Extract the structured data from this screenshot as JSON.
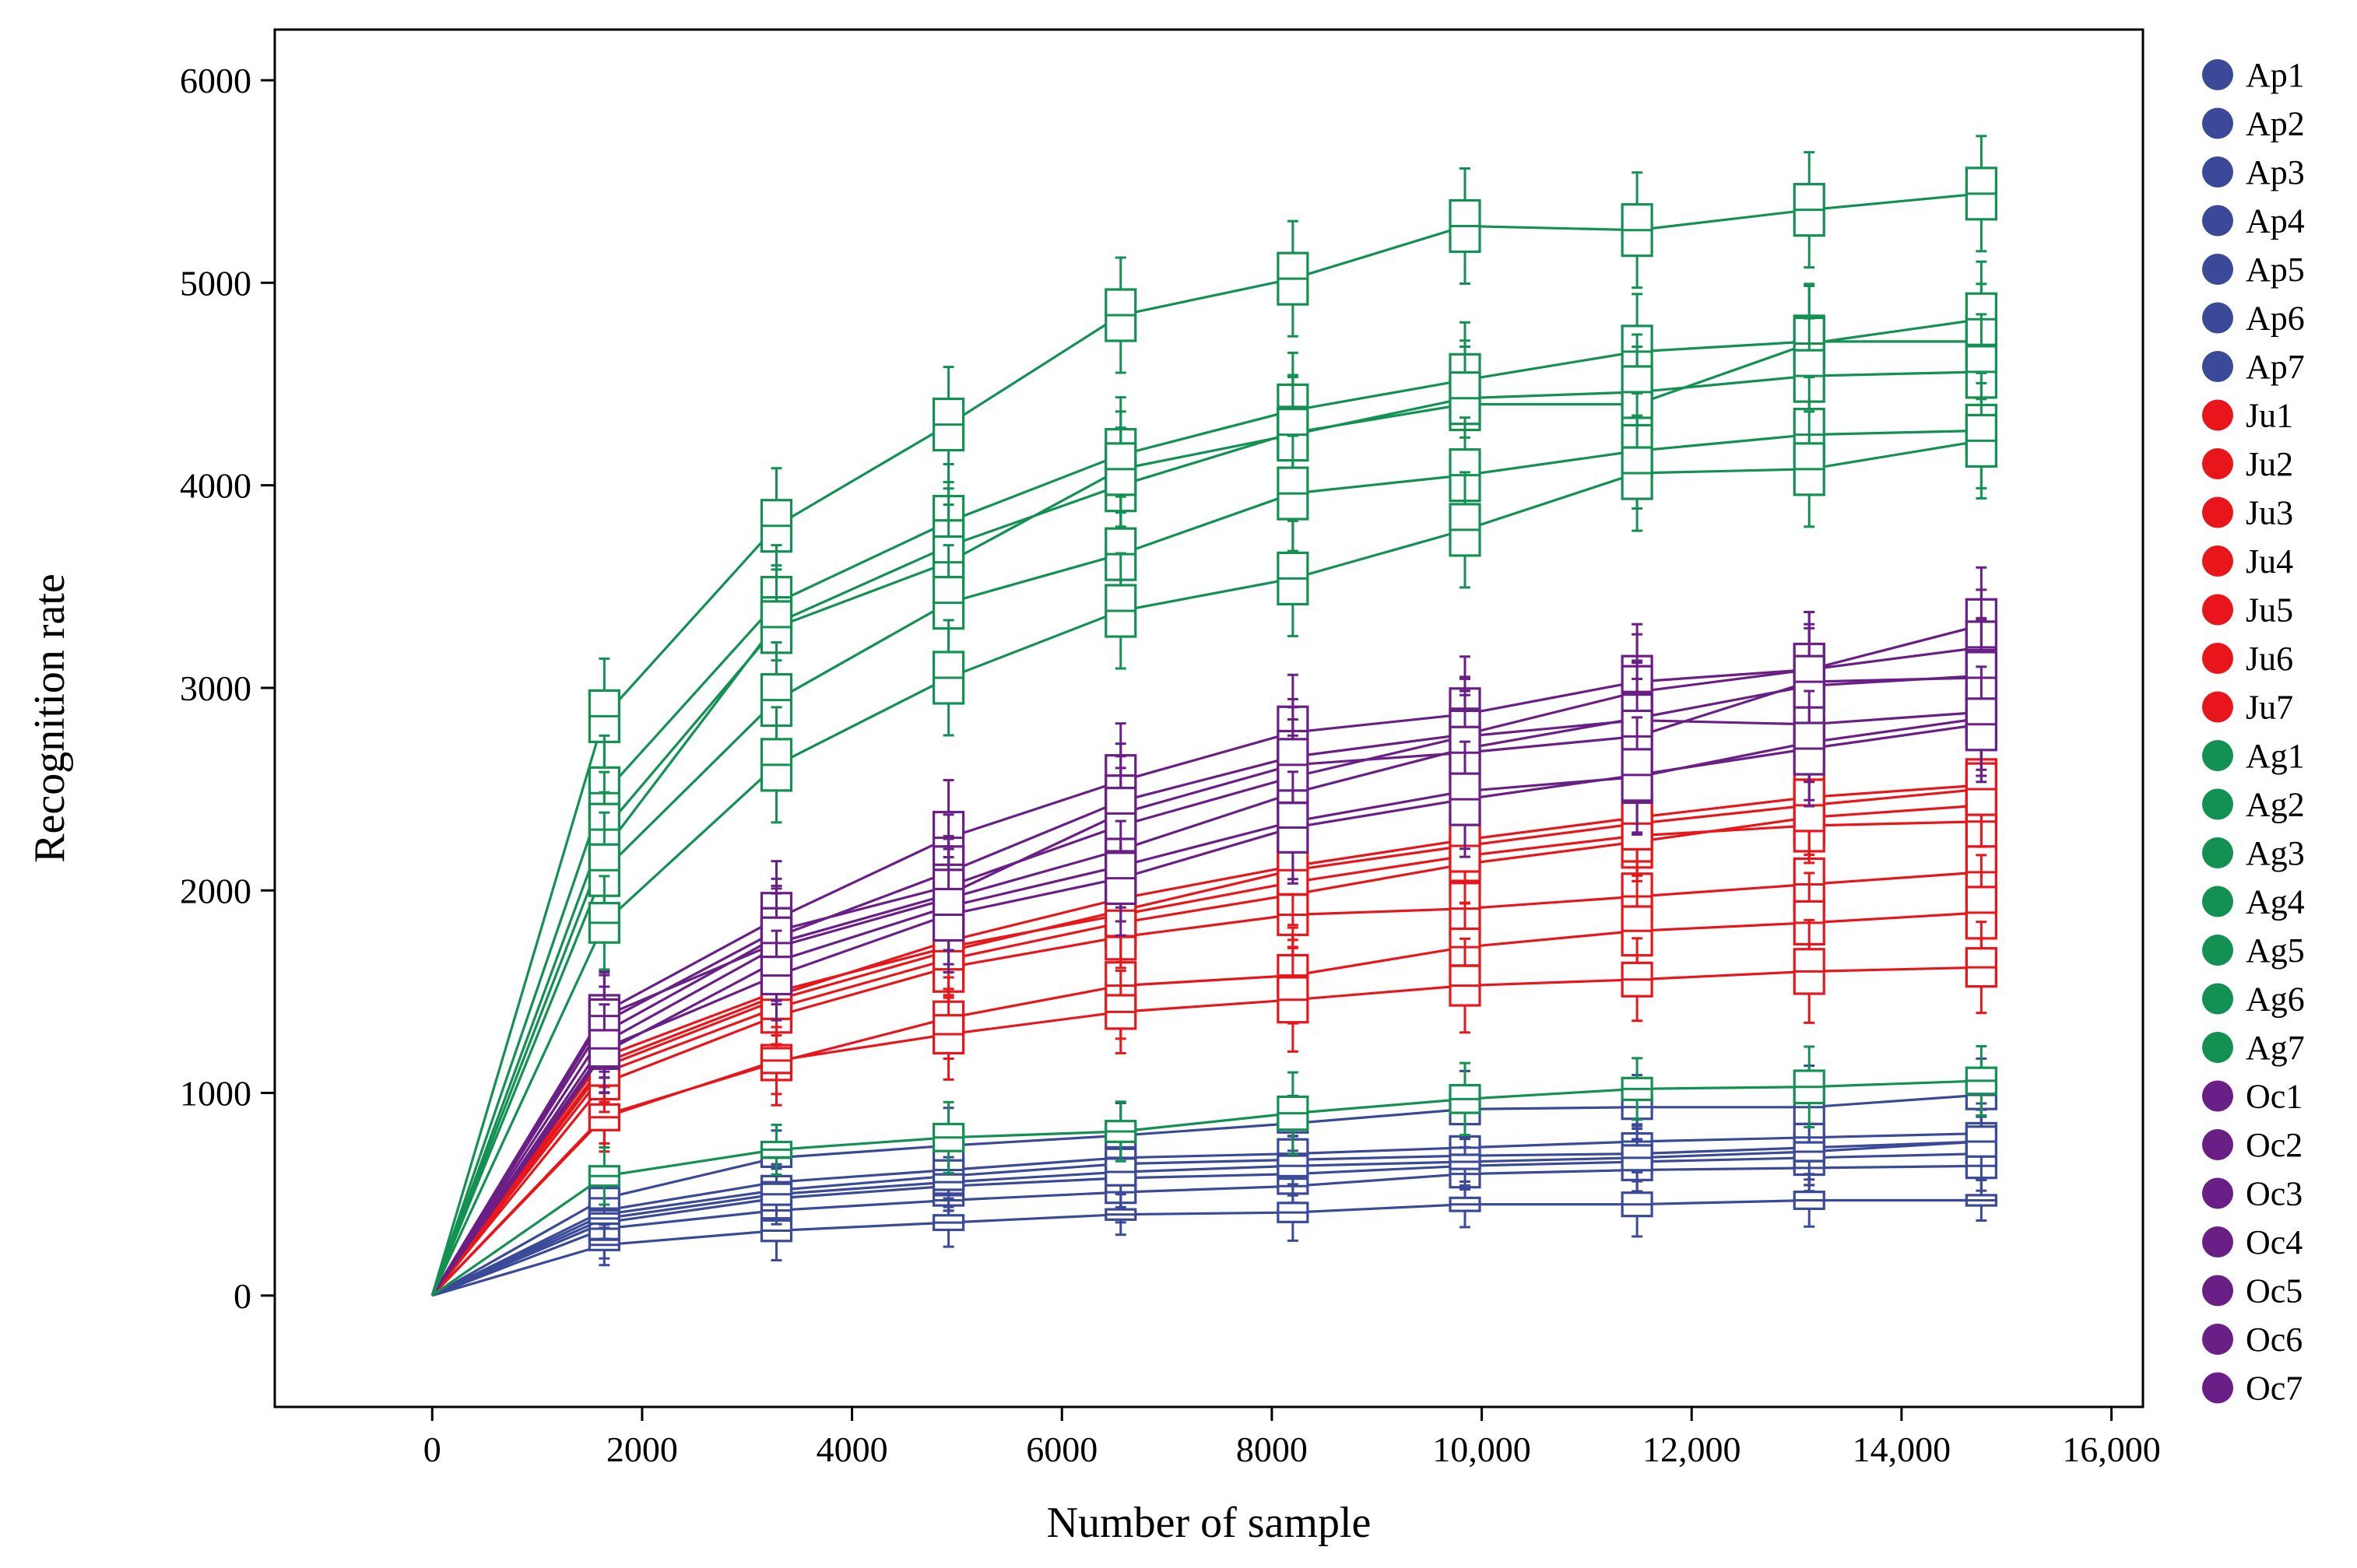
{
  "chart_data": {
    "type": "line",
    "title": "",
    "xlabel": "Number of sample",
    "ylabel": "Recognition rate",
    "xlim": [
      -1500,
      16300
    ],
    "ylim": [
      -550,
      6250
    ],
    "x_ticks": [
      0,
      2000,
      4000,
      6000,
      8000,
      10000,
      12000,
      14000,
      16000
    ],
    "x_tick_labels": [
      "0",
      "2000",
      "4000",
      "6000",
      "8000",
      "10,000",
      "12,000",
      "14,000",
      "16,000"
    ],
    "y_ticks": [
      0,
      1000,
      2000,
      3000,
      4000,
      5000,
      6000
    ],
    "y_tick_labels": [
      "0",
      "1000",
      "2000",
      "3000",
      "4000",
      "5000",
      "6000"
    ],
    "grid": false,
    "legend_position": "right",
    "x": [
      0,
      1640,
      3280,
      4920,
      6560,
      8200,
      9840,
      11480,
      13120,
      14760
    ],
    "colors": {
      "Ap": "#3a4a98",
      "Ju": "#e8161b",
      "Ag": "#129152",
      "Oc": "#6a1f86"
    },
    "series": [
      {
        "name": "Ap1",
        "group": "Ap",
        "values": [
          0,
          400,
          520,
          590,
          650,
          670,
          690,
          700,
          730,
          760
        ]
      },
      {
        "name": "Ap2",
        "group": "Ap",
        "values": [
          0,
          360,
          480,
          540,
          580,
          600,
          640,
          660,
          680,
          700
        ]
      },
      {
        "name": "Ap3",
        "group": "Ap",
        "values": [
          0,
          420,
          560,
          620,
          680,
          700,
          730,
          760,
          780,
          800
        ]
      },
      {
        "name": "Ap4",
        "group": "Ap",
        "values": [
          0,
          330,
          420,
          470,
          510,
          540,
          600,
          620,
          630,
          640
        ]
      },
      {
        "name": "Ap5",
        "group": "Ap",
        "values": [
          0,
          250,
          320,
          360,
          400,
          410,
          450,
          450,
          470,
          470
        ]
      },
      {
        "name": "Ap6",
        "group": "Ap",
        "values": [
          0,
          480,
          680,
          740,
          790,
          850,
          920,
          930,
          930,
          990
        ]
      },
      {
        "name": "Ap7",
        "group": "Ap",
        "values": [
          0,
          380,
          500,
          560,
          610,
          640,
          660,
          680,
          710,
          760
        ]
      },
      {
        "name": "Ju1",
        "group": "Ju",
        "values": [
          0,
          1150,
          1480,
          1750,
          1960,
          2120,
          2250,
          2360,
          2460,
          2520
        ]
      },
      {
        "name": "Ju2",
        "group": "Ju",
        "values": [
          0,
          1100,
          1420,
          1660,
          1840,
          1980,
          2130,
          2240,
          2360,
          2420
        ]
      },
      {
        "name": "Ju3",
        "group": "Ju",
        "values": [
          0,
          1180,
          1500,
          1720,
          1880,
          2040,
          2170,
          2270,
          2320,
          2340
        ]
      },
      {
        "name": "Ju4",
        "group": "Ju",
        "values": [
          0,
          1050,
          1380,
          1620,
          1770,
          1880,
          1910,
          1970,
          2030,
          2090
        ]
      },
      {
        "name": "Ju5",
        "group": "Ju",
        "values": [
          0,
          890,
          1150,
          1370,
          1530,
          1580,
          1720,
          1800,
          1840,
          1890
        ]
      },
      {
        "name": "Ju6",
        "group": "Ju",
        "values": [
          0,
          880,
          1160,
          1290,
          1400,
          1460,
          1530,
          1560,
          1600,
          1620
        ]
      },
      {
        "name": "Ju7",
        "group": "Ju",
        "values": [
          0,
          1130,
          1460,
          1700,
          1900,
          2100,
          2220,
          2330,
          2420,
          2500
        ]
      },
      {
        "name": "Ag1",
        "group": "Ag",
        "values": [
          0,
          2860,
          3800,
          4300,
          4840,
          5020,
          5280,
          5260,
          5360,
          5440
        ]
      },
      {
        "name": "Ag2",
        "group": "Ag",
        "values": [
          0,
          2480,
          3420,
          3820,
          4150,
          4370,
          4520,
          4660,
          4710,
          4710
        ]
      },
      {
        "name": "Ag3",
        "group": "Ag",
        "values": [
          0,
          2200,
          3320,
          3700,
          4000,
          4260,
          4400,
          4400,
          4700,
          4820
        ]
      },
      {
        "name": "Ag4",
        "group": "Ag",
        "values": [
          0,
          2300,
          3300,
          3620,
          4080,
          4250,
          4430,
          4460,
          4540,
          4560
        ]
      },
      {
        "name": "Ag5",
        "group": "Ag",
        "values": [
          0,
          2100,
          2940,
          3420,
          3660,
          3960,
          4050,
          4170,
          4250,
          4270
        ]
      },
      {
        "name": "Ag6",
        "group": "Ag",
        "values": [
          0,
          1840,
          2620,
          3050,
          3380,
          3540,
          3780,
          4060,
          4080,
          4220
        ]
      },
      {
        "name": "Ag7",
        "group": "Ag",
        "values": [
          0,
          590,
          720,
          780,
          810,
          900,
          970,
          1020,
          1030,
          1060
        ]
      },
      {
        "name": "Oc1",
        "group": "Oc",
        "values": [
          0,
          1400,
          1860,
          2260,
          2540,
          2780,
          2870,
          3030,
          3090,
          3310
        ]
      },
      {
        "name": "Oc2",
        "group": "Oc",
        "values": [
          0,
          1300,
          1770,
          2090,
          2440,
          2660,
          2770,
          2980,
          3090,
          3200
        ]
      },
      {
        "name": "Oc3",
        "group": "Oc",
        "values": [
          0,
          1250,
          1720,
          1960,
          2200,
          2480,
          2700,
          2850,
          3010,
          3060
        ]
      },
      {
        "name": "Oc4",
        "group": "Oc",
        "values": [
          0,
          1200,
          1650,
          1920,
          2120,
          2340,
          2490,
          2560,
          2730,
          2850
        ]
      },
      {
        "name": "Oc5",
        "group": "Oc",
        "values": [
          0,
          1350,
          1800,
          2020,
          2320,
          2560,
          2760,
          2840,
          2820,
          2880
        ]
      },
      {
        "name": "Oc6",
        "group": "Oc",
        "values": [
          0,
          1380,
          1740,
          1980,
          2380,
          2620,
          2680,
          2760,
          3030,
          3050
        ]
      },
      {
        "name": "Oc7",
        "group": "Oc",
        "values": [
          0,
          1220,
          1580,
          1880,
          2060,
          2310,
          2450,
          2570,
          2700,
          2820
        ]
      }
    ]
  }
}
